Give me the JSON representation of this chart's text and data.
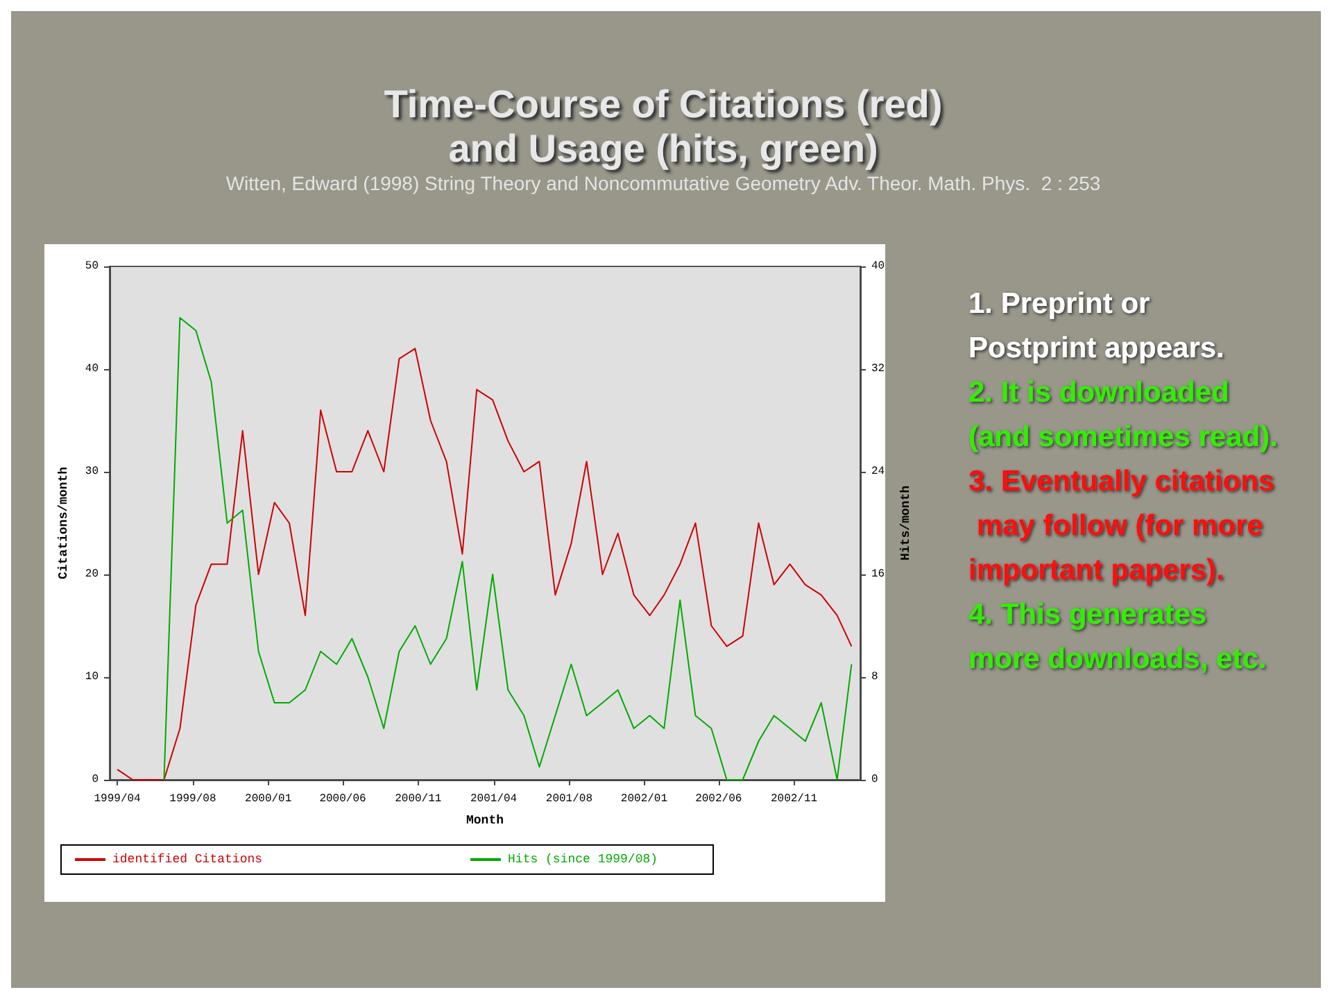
{
  "chart_data": {
    "type": "line",
    "title": "Time-Course of Citations (red)\nand Usage (hits, green)",
    "subtitle": "Witten, Edward (1998) String Theory and Noncommutative Geometry Adv. Theor. Math. Phys.  2 : 253",
    "xlabel": "Month",
    "ylabel": "Citations/month",
    "y2label": "Hits/month",
    "x": [
      "1999-04",
      "1999-05",
      "1999-06",
      "1999-07",
      "1999-08",
      "1999-09",
      "1999-10",
      "1999-11",
      "1999-12",
      "2000-01",
      "2000-02",
      "2000-03",
      "2000-04",
      "2000-05",
      "2000-06",
      "2000-07",
      "2000-08",
      "2000-09",
      "2000-10",
      "2000-11",
      "2000-12",
      "2001-01",
      "2001-02",
      "2001-03",
      "2001-04",
      "2001-05",
      "2001-06",
      "2001-07",
      "2001-08",
      "2001-09",
      "2001-10",
      "2001-11",
      "2001-12",
      "2002-01",
      "2002-02",
      "2002-03",
      "2002-04",
      "2002-05",
      "2002-06",
      "2002-07",
      "2002-08",
      "2002-09",
      "2002-10",
      "2002-11",
      "2002-12",
      "2003-01",
      "2003-02",
      "2003-03"
    ],
    "series": [
      {
        "name": "identified Citations",
        "color": "#cc0000",
        "values": [
          1,
          0,
          0,
          0,
          5,
          17,
          21,
          21,
          34,
          20,
          27,
          25,
          16,
          36,
          30,
          30,
          34,
          30,
          41,
          42,
          35,
          31,
          22,
          38,
          37,
          33,
          30,
          31,
          18,
          23,
          31,
          20,
          24,
          18,
          16,
          18,
          21,
          25,
          15,
          13,
          14,
          25,
          19,
          21,
          19,
          18,
          16,
          13
        ]
      },
      {
        "name": "Hits (since 1999/08)",
        "color": "#00aa00",
        "axis": "y2",
        "values": [
          null,
          null,
          null,
          0,
          36,
          35,
          31,
          20,
          21,
          10,
          6,
          6,
          7,
          10,
          9,
          11,
          8,
          4,
          10,
          12,
          9,
          11,
          17,
          7,
          16,
          7,
          5,
          1,
          5,
          9,
          5,
          6,
          7,
          4,
          5,
          4,
          14,
          5,
          4,
          0,
          0,
          3,
          5,
          4,
          3,
          6,
          0,
          9
        ]
      }
    ],
    "xlim": [
      "1999-03-17",
      "2003-03-18"
    ],
    "xticks": [
      {
        "value": "1999-04-01",
        "label": "1999/04"
      },
      {
        "value": "1999-08-26",
        "label": "1999/08"
      },
      {
        "value": "2000-01-20",
        "label": "2000/01"
      },
      {
        "value": "2000-06-13",
        "label": "2000/06"
      },
      {
        "value": "2000-11-07",
        "label": "2000/11"
      },
      {
        "value": "2001-04-03",
        "label": "2001/04"
      },
      {
        "value": "2001-08-28",
        "label": "2001/08"
      },
      {
        "value": "2002-01-21",
        "label": "2002/01"
      },
      {
        "value": "2002-06-15",
        "label": "2002/06"
      },
      {
        "value": "2002-11-09",
        "label": "2002/11"
      }
    ],
    "ylim": [
      0,
      50
    ],
    "yticks": [
      0,
      10,
      20,
      30,
      40,
      50
    ],
    "y2lim": [
      0,
      40
    ],
    "y2ticks": [
      0,
      8,
      16,
      24,
      32,
      40
    ],
    "legend": "bottom",
    "annotations": [
      "1. Preprint or Postprint appears.",
      "2. It is downloaded (and sometimes read).",
      "3. Eventually citations may follow (for more important papers).",
      "4. This generates more downloads, etc."
    ]
  }
}
